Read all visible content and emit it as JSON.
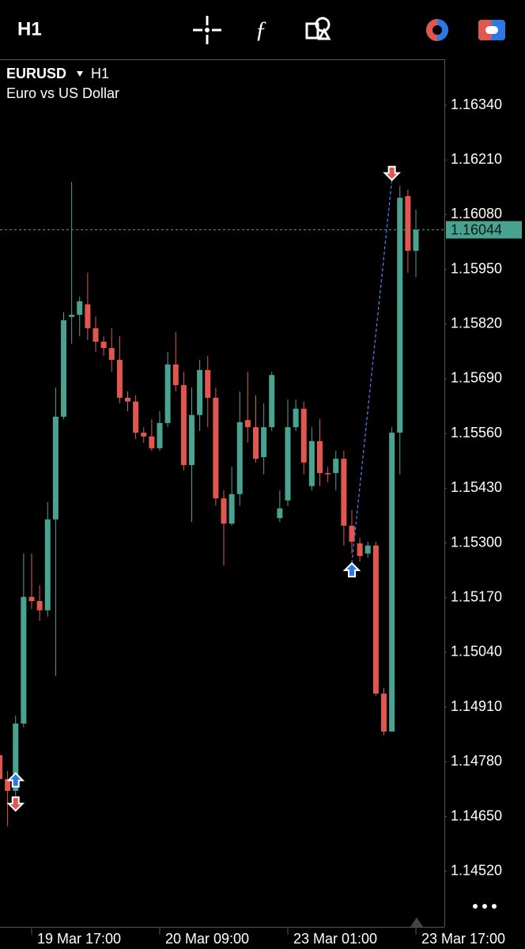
{
  "toolbar": {
    "timeframe": "H1"
  },
  "chart_data": {
    "type": "candlestick",
    "symbol": "EURUSD",
    "timeframe": "H1",
    "description": "Euro vs US Dollar",
    "up_color": "#4aa391",
    "down_color": "#e0574f",
    "grid": false,
    "categories": [
      null,
      null,
      null,
      null,
      "19 Mar 17:00",
      null,
      null,
      null,
      null,
      null,
      null,
      null,
      null,
      null,
      null,
      null,
      null,
      null,
      null,
      null,
      "20 Mar 09:00",
      null,
      null,
      null,
      null,
      null,
      null,
      null,
      null,
      null,
      null,
      null,
      null,
      null,
      null,
      null,
      "23 Mar 01:00",
      null,
      null,
      null,
      null,
      null,
      null,
      null,
      null,
      null,
      null,
      null,
      null,
      null,
      null,
      null,
      "23 Mar 17:00"
    ],
    "open": [
      1.14796,
      1.14739,
      1.14711,
      1.14871,
      1.15172,
      1.15162,
      1.1514,
      1.15356,
      1.156,
      1.15837,
      1.15842,
      1.15867,
      1.1581,
      1.15778,
      1.15763,
      1.15735,
      1.15645,
      1.15636,
      1.15562,
      1.15553,
      1.15525,
      1.15585,
      1.15724,
      1.15675,
      1.15485,
      1.15604,
      1.15711,
      1.15645,
      1.15406,
      1.15346,
      1.15416,
      1.15592,
      1.15575,
      1.15504,
      1.15575,
      1.15359,
      1.15401,
      1.15575,
      1.15619,
      1.15435,
      1.15542,
      1.15466,
      1.15466,
      1.155,
      1.15341,
      1.15299,
      1.15275,
      1.15294,
      1.14942,
      1.14852,
      1.15562,
      1.16124,
      1.15994
    ],
    "high": [
      1.14805,
      1.14758,
      1.1489,
      1.15275,
      1.15275,
      1.152,
      1.15397,
      1.15669,
      1.15848,
      1.16158,
      1.15885,
      1.15942,
      1.15838,
      1.15791,
      1.1581,
      1.15791,
      1.1566,
      1.15651,
      1.15575,
      1.15594,
      1.15613,
      1.15754,
      1.15801,
      1.15707,
      1.15669,
      1.15735,
      1.15745,
      1.15669,
      1.15425,
      1.15481,
      1.1566,
      1.15707,
      1.15651,
      1.15632,
      1.15707,
      1.15425,
      1.15641,
      1.15641,
      1.15636,
      1.15575,
      1.15594,
      1.15481,
      1.15519,
      1.15519,
      1.15378,
      1.15312,
      1.15303,
      1.15303,
      1.14955,
      1.15575,
      1.16148,
      1.16139,
      1.16092
    ],
    "low": [
      1.1473,
      1.14627,
      1.14692,
      1.14862,
      1.15143,
      1.15115,
      1.15125,
      1.14984,
      1.15594,
      1.15773,
      1.15791,
      1.15782,
      1.15754,
      1.15745,
      1.15707,
      1.15632,
      1.15613,
      1.15547,
      1.15538,
      1.15519,
      1.15519,
      1.15575,
      1.1566,
      1.15472,
      1.1535,
      1.15566,
      1.15575,
      1.15388,
      1.15247,
      1.15341,
      1.15388,
      1.15538,
      1.15491,
      1.15463,
      1.15566,
      1.1535,
      1.15388,
      1.15566,
      1.15463,
      1.15425,
      1.15435,
      1.15444,
      1.15425,
      1.15294,
      1.15275,
      1.15256,
      1.15265,
      1.14937,
      1.14843,
      1.14852,
      1.15463,
      1.15942,
      1.15932
    ],
    "close": [
      1.14739,
      1.14711,
      1.14871,
      1.15172,
      1.15162,
      1.1514,
      1.15356,
      1.156,
      1.15829,
      1.15842,
      1.15874,
      1.1581,
      1.15778,
      1.15763,
      1.15735,
      1.15645,
      1.15636,
      1.15562,
      1.15553,
      1.15525,
      1.15585,
      1.15724,
      1.15675,
      1.15485,
      1.15604,
      1.15711,
      1.15645,
      1.15406,
      1.15346,
      1.15416,
      1.15587,
      1.15575,
      1.155,
      1.15575,
      1.15699,
      1.15382,
      1.15575,
      1.15619,
      1.15491,
      1.15542,
      1.15466,
      1.15463,
      1.155,
      1.15341,
      1.15303,
      1.15269,
      1.15294,
      1.14942,
      1.14852,
      1.15562,
      1.1612,
      1.15994,
      1.16044
    ],
    "ylim": [
      1.14388,
      1.16449
    ],
    "yticks": [
      {
        "value": 1.1634,
        "label": "1.16340"
      },
      {
        "value": 1.1621,
        "label": "1.16210"
      },
      {
        "value": 1.1608,
        "label": "1.16080"
      },
      {
        "value": 1.1595,
        "label": "1.15950"
      },
      {
        "value": 1.1582,
        "label": "1.15820"
      },
      {
        "value": 1.1569,
        "label": "1.15690"
      },
      {
        "value": 1.1556,
        "label": "1.15560"
      },
      {
        "value": 1.1543,
        "label": "1.15430"
      },
      {
        "value": 1.153,
        "label": "1.15300"
      },
      {
        "value": 1.1517,
        "label": "1.15170"
      },
      {
        "value": 1.1504,
        "label": "1.15040"
      },
      {
        "value": 1.1491,
        "label": "1.14910"
      },
      {
        "value": 1.1478,
        "label": "1.14780"
      },
      {
        "value": 1.1465,
        "label": "1.14650"
      },
      {
        "value": 1.1452,
        "label": "1.14520"
      }
    ],
    "current_price": 1.16044,
    "current_price_color": "#4aa391",
    "markers": [
      {
        "index": 2,
        "price": 1.14753,
        "color": "#2e78e6",
        "direction": "up"
      },
      {
        "index": 2,
        "price": 1.14664,
        "color": "#e0574f",
        "direction": "down"
      },
      {
        "index": 44,
        "price": 1.15252,
        "color": "#2e78e6",
        "direction": "up"
      },
      {
        "index": 49,
        "price": 1.16162,
        "color": "#e0574f",
        "direction": "down"
      }
    ],
    "trade_line": {
      "x": [
        44,
        49
      ],
      "y": [
        1.15252,
        1.16162
      ],
      "color": "#4a7cf0"
    }
  }
}
